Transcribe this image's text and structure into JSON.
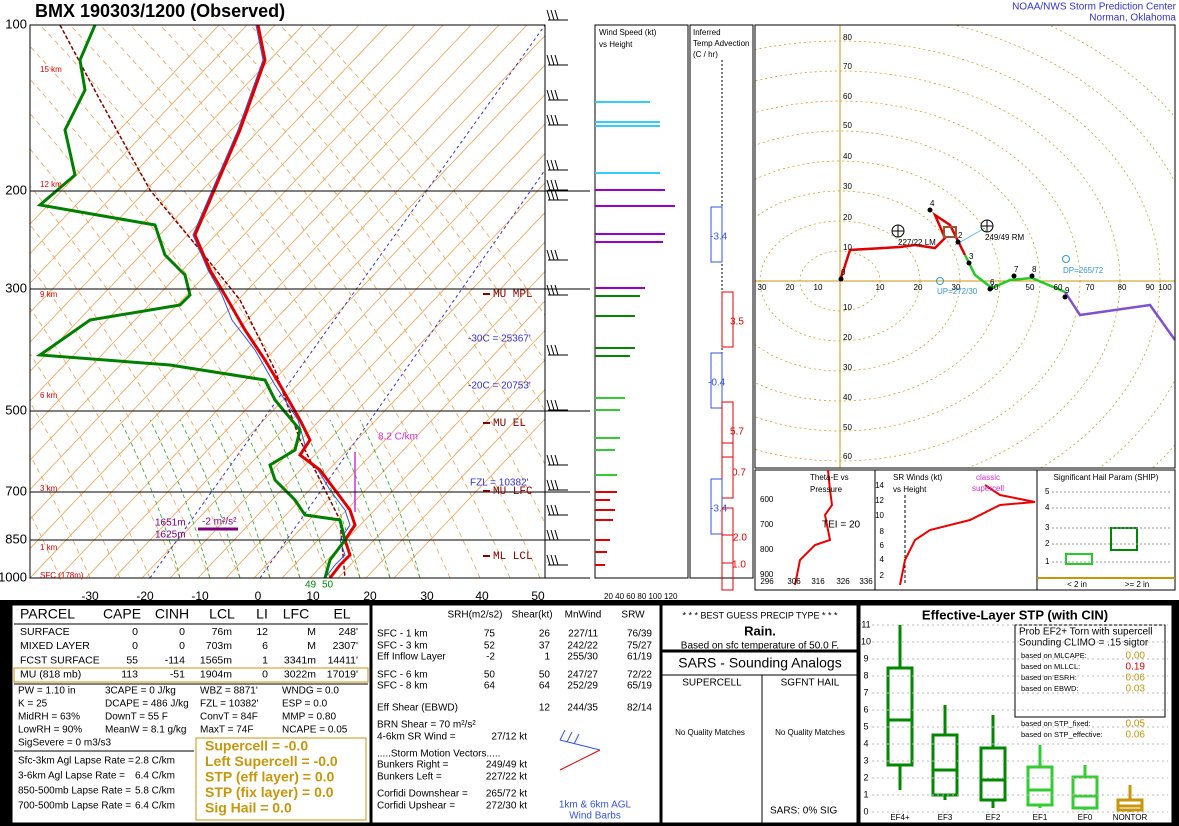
{
  "header": {
    "title": "BMX   190303/1200  (Observed)",
    "org": "NOAA/NWS Storm Prediction Center",
    "place": "Norman, Oklahoma"
  },
  "skewt": {
    "pressure_labels": [
      "100",
      "200",
      "300",
      "500",
      "700",
      "850",
      "1000"
    ],
    "temp_labels": [
      "-30",
      "-20",
      "-10",
      "0",
      "10",
      "20",
      "30",
      "40",
      "50"
    ],
    "height_labels": [
      "15 km",
      "12 km",
      "9 km",
      "6 km",
      "3 km",
      "1 km",
      "SFC (178m)"
    ],
    "annotations": [
      "MU MPL",
      "-30C = 25367'",
      "-20C = 20753'",
      "MU EL",
      "FZL = 10382'",
      "MU LFC",
      "ML LCL",
      "8.2 C/km",
      "1651m",
      "1625m",
      "-2 m²/s²",
      "49",
      "50"
    ]
  },
  "wind_speed": {
    "title": [
      "Wind Speed (kt)",
      "vs Height"
    ],
    "axis": "20 40 60 80 100 120"
  },
  "temp_advection": {
    "title": [
      "Inferred",
      "Temp Advection",
      "(C / hr)"
    ],
    "values": [
      "-3.4",
      "3.5",
      "-0.4",
      "5.7",
      "0.7",
      "-3.4",
      "2.0",
      "1.0"
    ]
  },
  "hodograph": {
    "y_labels": [
      "80",
      "70",
      "60",
      "50",
      "40",
      "30",
      "20",
      "10",
      "10",
      "20",
      "30",
      "40",
      "50",
      "60"
    ],
    "x_labels": [
      "30",
      "20",
      "10",
      "10",
      "20",
      "30",
      "40",
      "50",
      "60",
      "70",
      "80",
      "90",
      "100"
    ],
    "annotations": [
      "227/22 LM",
      "249/49 RM",
      "DP=265/72",
      "UP=272/30"
    ],
    "points": [
      "0",
      "2",
      "3",
      "4",
      "6",
      "7",
      "8",
      "9"
    ]
  },
  "theta_e": {
    "title": [
      "Theta-E vs",
      "Pressure"
    ],
    "tei": "TEI = 20",
    "y_labels": [
      "600",
      "700",
      "800",
      "900"
    ],
    "x_labels": [
      "296",
      "306",
      "316",
      "326",
      "336"
    ]
  },
  "sr_winds": {
    "title": [
      "SR Winds (kt)",
      "vs Height"
    ],
    "note": [
      "classic",
      "supercell"
    ],
    "y_labels": [
      "14",
      "12",
      "10",
      "8",
      "6",
      "4",
      "2"
    ]
  },
  "ship": {
    "title": "Significant Hail Param (SHIP)",
    "x_labels": [
      "< 2 in",
      ">= 2 in"
    ],
    "y_labels": [
      "5",
      "4",
      "3",
      "2",
      "1"
    ]
  },
  "parcel": {
    "header": [
      "PARCEL",
      "CAPE",
      "CINH",
      "LCL",
      "LI",
      "LFC",
      "EL"
    ],
    "rows": [
      [
        "SURFACE",
        "0",
        "0",
        "76m",
        "12",
        "M",
        "248'"
      ],
      [
        "MIXED LAYER",
        "0",
        "0",
        "703m",
        "6",
        "M",
        "2307'"
      ],
      [
        "FCST SURFACE",
        "55",
        "-114",
        "1565m",
        "1",
        "3341m",
        "14411'"
      ],
      [
        "MU  (818 mb)",
        "113",
        "-51",
        "1904m",
        "0",
        "3022m",
        "17019'"
      ]
    ]
  },
  "indices": [
    [
      "PW = 1.10 in",
      "3CAPE = 0 J/kg",
      "WBZ = 8871'",
      "WNDG = 0.0"
    ],
    [
      "K = 25",
      "DCAPE = 486 J/kg",
      "FZL = 10382'",
      "ESP = 0.0"
    ],
    [
      "MidRH = 63%",
      "DownT = 55 F",
      "ConvT = 84F",
      "MMP = 0.80"
    ],
    [
      "LowRH = 90%",
      "MeanW = 8.1 g/kg",
      "MaxT = 74F",
      "NCAPE = 0.05"
    ],
    [
      "SigSevere = 0 m3/s3"
    ]
  ],
  "lapse_rates": [
    [
      "Sfc-3km Agl Lapse Rate =",
      "2.8 C/km"
    ],
    [
      "3-6km Agl Lapse Rate =",
      "6.4 C/km"
    ],
    [
      "850-500mb Lapse Rate =",
      "5.8 C/km"
    ],
    [
      "700-500mb Lapse Rate =",
      "6.4 C/km"
    ]
  ],
  "composite": [
    "Supercell = -0.0",
    "Left Supercell = -0.0",
    "STP (eff layer) = 0.0",
    "STP (fix layer) = 0.0",
    "Sig Hail = 0.0"
  ],
  "kinematics": {
    "header": [
      "SRH(m2/s2)",
      "Shear(kt)",
      "MnWind",
      "SRW"
    ],
    "rows": [
      [
        "SFC - 1 km",
        "75",
        "26",
        "227/11",
        "76/39"
      ],
      [
        "SFC - 3 km",
        "52",
        "37",
        "242/22",
        "75/27"
      ],
      [
        "Eff Inflow Layer",
        "-2",
        "1",
        "255/30",
        "61/19"
      ],
      [
        "SFC - 6 km",
        "50",
        "50",
        "247/27",
        "72/22"
      ],
      [
        "SFC - 8 km",
        "64",
        "64",
        "252/29",
        "65/19"
      ]
    ],
    "ebwd": [
      "Eff Shear (EBWD)",
      "12",
      "244/35",
      "82/14"
    ],
    "brn": "BRN Shear = 70 m²/s²",
    "sr46": [
      "4-6km SR Wind =",
      "27/12 kt"
    ],
    "motion_title": ".....Storm Motion Vectors.....",
    "motions": [
      [
        "Bunkers Right =",
        "249/49 kt"
      ],
      [
        "Bunkers Left =",
        "227/22 kt"
      ],
      [
        "Corfidi Downshear =",
        "265/72 kt"
      ],
      [
        "Corfidi Upshear =",
        "272/30 kt"
      ]
    ],
    "barb_note": [
      "1km & 6km AGL",
      "Wind Barbs"
    ]
  },
  "precip": {
    "title": "* * * BEST GUESS PRECIP TYPE * * *",
    "type": "Rain.",
    "basis": "Based on sfc temperature of 50.0 F."
  },
  "sars": {
    "title": "SARS - Sounding Analogs",
    "columns": [
      "SUPERCELL",
      "SGFNT HAIL"
    ],
    "matches": [
      "No Quality Matches",
      "No Quality Matches"
    ],
    "summary": "SARS:  0% SIG"
  },
  "stp": {
    "title": "Effective-Layer STP (with CIN)",
    "prob": [
      "Prob EF2+ Torn with supercell",
      "Sounding CLIMO = .15 sigtor"
    ],
    "components": [
      [
        "based on MLCAPE:",
        "0.00"
      ],
      [
        "based on MLLCL:",
        "0.19"
      ],
      [
        "based on ESRH:",
        "0.06"
      ],
      [
        "based on EBWD:",
        "0.03"
      ],
      [
        "based on STP_fixed:",
        "0.05"
      ],
      [
        "based on STP_effective:",
        "0.06"
      ]
    ],
    "y_labels": [
      "0",
      "1",
      "2",
      "3",
      "4",
      "5",
      "6",
      "7",
      "8",
      "9",
      "10",
      "11"
    ],
    "x_labels": [
      "EF4+",
      "EF3",
      "EF2",
      "EF1",
      "EF0",
      "NONTOR"
    ]
  }
}
